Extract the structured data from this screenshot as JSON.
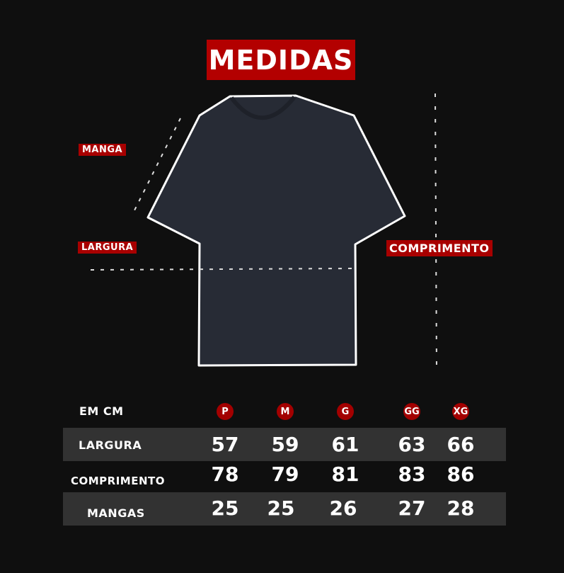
{
  "title": "MEDIDAS",
  "labels": {
    "manga": "MANGA",
    "largura": "LARGURA",
    "comprimento": "COMPRIMENTO"
  },
  "colors": {
    "accent": "#b30000",
    "background": "#0f0f0f",
    "shirt": "#272b35",
    "row_shade": "#323232"
  },
  "table": {
    "unit_label": "EM CM",
    "sizes": [
      "P",
      "M",
      "G",
      "GG",
      "XG"
    ],
    "rows": [
      {
        "label": "LARGURA",
        "values": [
          "57",
          "59",
          "61",
          "63",
          "66"
        ]
      },
      {
        "label": "COMPRIMENTO",
        "values": [
          "78",
          "79",
          "81",
          "83",
          "86"
        ]
      },
      {
        "label": "MANGAS",
        "values": [
          "25",
          "25",
          "26",
          "27",
          "28"
        ]
      }
    ]
  }
}
